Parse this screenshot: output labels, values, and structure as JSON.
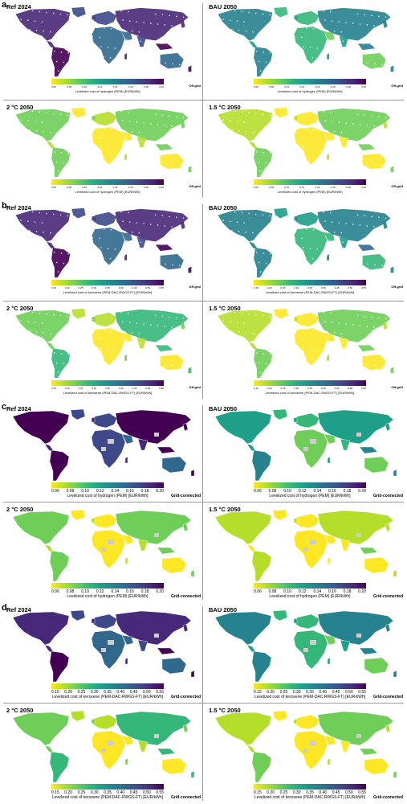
{
  "sections": [
    {
      "label": "a",
      "mode_label": "Off-grid",
      "colorbar_title": "Levelized cost of hydrogen (PEM) [EUR/kWh]",
      "panels": [
        {
          "title": "Ref 2024",
          "ticks": [
            "0.06",
            "0.08",
            "0.10",
            "0.12",
            "0.14",
            "0.16",
            "0.18",
            "0.20"
          ],
          "level": 0.85
        },
        {
          "title": "BAU 2050",
          "ticks": [
            "0.06",
            "0.08",
            "0.10",
            "0.12",
            "0.14",
            "0.16",
            "0.18",
            "0.20"
          ],
          "level": 0.45
        },
        {
          "title": "2 °C  2050",
          "ticks": [
            "0.06",
            "0.08",
            "0.10",
            "0.12",
            "0.14",
            "0.16",
            "0.18",
            "0.20"
          ],
          "level": 0.15
        },
        {
          "title": "1.5 °C 2050",
          "ticks": [
            "0.06",
            "0.08",
            "0.10",
            "0.12",
            "0.14",
            "0.16",
            "0.18",
            "0.20"
          ],
          "level": 0.1
        }
      ]
    },
    {
      "label": "b",
      "mode_label": "Off-grid",
      "colorbar_title": "Levelized cost of kerosene (PEM-DAC-RWGS-FT) [EUR/kWh]",
      "panels": [
        {
          "title": "Ref 2024",
          "ticks": [
            "0.15",
            "0.20",
            "0.25",
            "0.30",
            "0.35",
            "0.40",
            "0.45",
            "0.50",
            "0.55"
          ],
          "level": 0.85
        },
        {
          "title": "BAU 2050",
          "ticks": [
            "0.15",
            "0.20",
            "0.25",
            "0.30",
            "0.35",
            "0.40",
            "0.45",
            "0.50",
            "0.55"
          ],
          "level": 0.5
        },
        {
          "title": "2 °C  2050",
          "ticks": [
            "0.15",
            "0.20",
            "0.25",
            "0.30",
            "0.35",
            "0.40",
            "0.45",
            "0.50",
            "0.55"
          ],
          "level": 0.2
        },
        {
          "title": "1.5 °C 2050",
          "ticks": [
            "0.15",
            "0.20",
            "0.25",
            "0.30",
            "0.35",
            "0.40",
            "0.45",
            "0.50",
            "0.55"
          ],
          "level": 0.1
        }
      ]
    },
    {
      "label": "c",
      "mode_label": "Grid-connected",
      "colorbar_title": "Levelized cost of hydrogen (PEM) [EUR/kWh]",
      "panels": [
        {
          "title": "Ref 2024",
          "ticks": [
            "0.06",
            "0.08",
            "0.10",
            "0.12",
            "0.14",
            "0.16",
            "0.18",
            "0.20"
          ],
          "level": 0.9
        },
        {
          "title": "BAU 2050",
          "ticks": [
            "0.06",
            "0.08",
            "0.10",
            "0.12",
            "0.14",
            "0.16",
            "0.18",
            "0.20"
          ],
          "level": 0.4
        },
        {
          "title": "2 °C  2050",
          "ticks": [
            "0.06",
            "0.08",
            "0.10",
            "0.12",
            "0.14",
            "0.16",
            "0.18",
            "0.20"
          ],
          "level": 0.12
        },
        {
          "title": "1.5 °C 2050",
          "ticks": [
            "0.06",
            "0.08",
            "0.10",
            "0.12",
            "0.14",
            "0.16",
            "0.18",
            "0.20"
          ],
          "level": 0.05
        }
      ]
    },
    {
      "label": "d",
      "mode_label": "Grid-connected",
      "colorbar_title": "Levelized cost of kerosene (PEM-DAC-RWGS-FT) [EUR/kWh]",
      "panels": [
        {
          "title": "Ref 2024",
          "ticks": [
            "0.15",
            "0.20",
            "0.25",
            "0.30",
            "0.35",
            "0.40",
            "0.45",
            "0.50",
            "0.55"
          ],
          "level": 0.85
        },
        {
          "title": "BAU 2050",
          "ticks": [
            "0.15",
            "0.20",
            "0.25",
            "0.30",
            "0.35",
            "0.40",
            "0.45",
            "0.50",
            "0.55"
          ],
          "level": 0.45
        },
        {
          "title": "2 °C 2050",
          "ticks": [
            "0.15",
            "0.20",
            "0.25",
            "0.30",
            "0.35",
            "0.40",
            "0.45",
            "0.50",
            "0.55"
          ],
          "level": 0.2
        },
        {
          "title": "1.5 °C 2050",
          "ticks": [
            "0.15",
            "0.20",
            "0.25",
            "0.30",
            "0.35",
            "0.40",
            "0.45",
            "0.50",
            "0.55"
          ],
          "level": 0.1
        }
      ]
    }
  ],
  "colormap": [
    "#fde725",
    "#b5de2b",
    "#6ece58",
    "#35b779",
    "#1f9e89",
    "#26828e",
    "#31688e",
    "#3e4989",
    "#482878",
    "#440154"
  ]
}
